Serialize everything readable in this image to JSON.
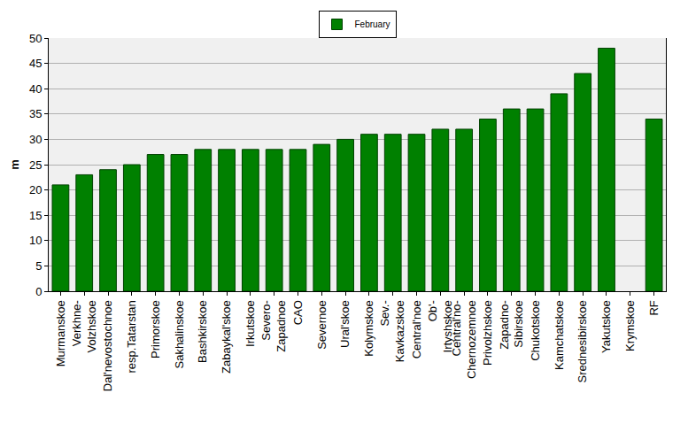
{
  "chart_data": {
    "type": "bar",
    "y_label": "m",
    "categories": [
      "Murmanskoe",
      "Verkhne-Volzhskoe",
      "Dal'nevostochnoe",
      "resp.Tatarstan",
      "Primorskoe",
      "Sakhalinskoe",
      "Bashkirskoe",
      "Zabaykal'skoe",
      "Irkutskoe",
      "Severo-Zapadnoe",
      "CAO",
      "Severnoe",
      "Ural'skoe",
      "Kolymskoe",
      "Sev.-Kavkazskoe",
      "Central'noe",
      "Ob'-Irtyshskoe",
      "Central'no-Chernozemnoe",
      "Privolzhskoe",
      "Zapadno-Sibirskoe",
      "Chukotskoe",
      "Kamchatskoe",
      "Srednesibirskoe",
      "Yakutskoe",
      "Krymskoe",
      "RF"
    ],
    "series": [
      {
        "name": "February",
        "color": "#008000",
        "values": [
          21,
          23,
          24,
          25,
          27,
          27,
          28,
          28,
          28,
          28,
          28,
          29,
          30,
          31,
          31,
          31,
          32,
          32,
          34,
          36,
          36,
          39,
          43,
          48,
          null,
          34
        ]
      }
    ],
    "ylim": [
      0,
      50
    ],
    "yticks": [
      0,
      5,
      10,
      15,
      20,
      25,
      30,
      35,
      40,
      45,
      50
    ],
    "grid": true,
    "legend": "top"
  }
}
